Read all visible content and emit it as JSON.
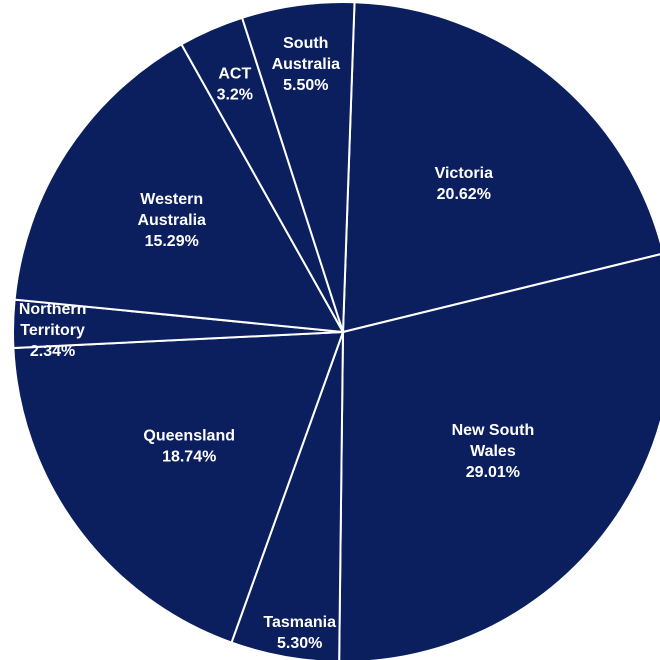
{
  "chart_data": {
    "type": "pie",
    "color": "#0b1f5f",
    "edge_color": "#ffffff",
    "slices": [
      {
        "label": [
          "Victoria"
        ],
        "pct_text": "20.62%",
        "value": 20.62
      },
      {
        "label": [
          "New South",
          "Wales"
        ],
        "pct_text": "29.01%",
        "value": 29.01
      },
      {
        "label": [
          "Tasmania"
        ],
        "pct_text": "5.30%",
        "value": 5.3
      },
      {
        "label": [
          "Queensland"
        ],
        "pct_text": "18.74%",
        "value": 18.74
      },
      {
        "label": [
          "Northern",
          "Territory"
        ],
        "pct_text": "2.34%",
        "value": 2.34
      },
      {
        "label": [
          "Western",
          "Australia"
        ],
        "pct_text": "15.29%",
        "value": 15.29
      },
      {
        "label": [
          "ACT"
        ],
        "pct_text": "3.2%",
        "value": 3.2
      },
      {
        "label": [
          "South",
          "Australia"
        ],
        "pct_text": "5.50%",
        "value": 5.5
      }
    ]
  }
}
